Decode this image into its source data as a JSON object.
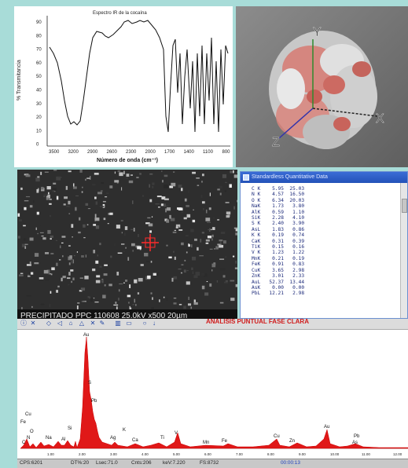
{
  "ir_plot": {
    "title": "Espectro IR de la cocaína",
    "ylabel": "% Transmitancia",
    "xlabel": "Número de onda (cm⁻¹)",
    "yticks": [
      "90",
      "80",
      "70",
      "60",
      "50",
      "40",
      "30",
      "20",
      "10",
      "0"
    ],
    "xticks": [
      "3500",
      "3200",
      "2900",
      "2600",
      "2300",
      "2000",
      "1700",
      "1400",
      "1100",
      "800"
    ]
  },
  "molecule": {
    "axes": [
      "Y",
      "X",
      "Z"
    ]
  },
  "sem": {
    "caption": "PRECIPITADO PPC 110608 25.0kV x500 20µm"
  },
  "quant": {
    "title": "Standardless Quantitative Data",
    "rows": [
      "C K    5.95  25.03",
      "N K    4.57  16.50",
      "O K    6.34  20.03",
      "NaK    1.73   3.80",
      "AlK    0.59   1.10",
      "SiK    2.28   4.10",
      "S K    2.40   3.90",
      "AsL    1.83   0.86",
      "K K    0.19   0.74",
      "CaK    0.31   0.39",
      "TiK    0.15   0.16",
      "V K    1.23   1.22",
      "MnK    0.21   0.19",
      "FeK    0.91   0.83",
      "CuK    3.65   2.98",
      "ZnK    3.01   2.33",
      "AuL   52.37  13.44",
      "AsK    0.00   0.00",
      "PbL   12.21   2.98"
    ]
  },
  "spectrum": {
    "title": "ANALISIS PUNTUAL FASE CLARA",
    "labels": [
      "Au",
      "S",
      "Pb",
      "Cu",
      "Fe",
      "O",
      "N",
      "C",
      "Na",
      "Al",
      "Si",
      "Ag",
      "K",
      "Ca",
      "Ti",
      "V",
      "Mn",
      "Fe",
      "Cu",
      "Zn",
      "Au",
      "Pb",
      "As"
    ],
    "xticks": [
      "1.00",
      "2.00",
      "3.00",
      "4.00",
      "5.00",
      "6.00",
      "7.00",
      "8.00",
      "9.00",
      "10.00",
      "11.00",
      "12.00"
    ]
  },
  "status": {
    "cps": "CPS:6201",
    "dt": "DT%:20",
    "lsec": "Lsec:71.0",
    "cnts": "Cnts:206",
    "kev": "keV:7.220",
    "fs": "FS:8732",
    "time": "00:00:13"
  }
}
